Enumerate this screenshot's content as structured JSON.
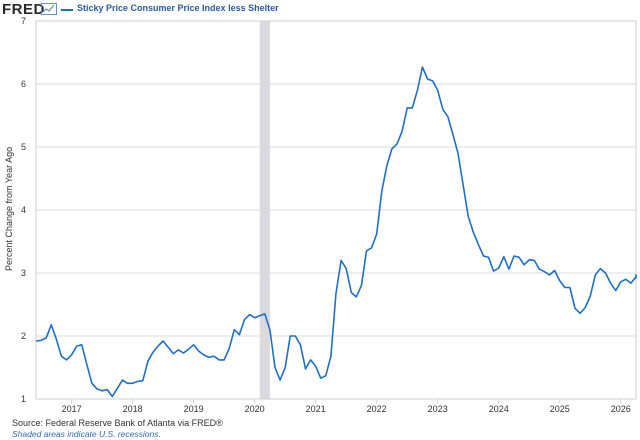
{
  "header": {
    "logo_text": "FRED",
    "logo_icon": "fred-graph-icon",
    "legend_label": "Sticky Price Consumer Price Index less Shelter"
  },
  "footer": {
    "source": "Source: Federal Reserve Bank of Atlanta via FRED®",
    "recession_note": "Shaded areas indicate U.S. recessions."
  },
  "colors": {
    "line": "#1f6fc9",
    "grid": "#dcdcdc",
    "recession": "#d9d9de"
  },
  "chart_data": {
    "type": "line",
    "title": "",
    "xlabel": "",
    "ylabel": "Percent Change from Year Ago",
    "xlim": [
      "2016-06",
      "2026-04"
    ],
    "ylim": [
      1,
      7
    ],
    "yticks": [
      1,
      2,
      3,
      4,
      5,
      6,
      7
    ],
    "xticks": [
      "2017",
      "2018",
      "2019",
      "2020",
      "2021",
      "2022",
      "2023",
      "2024",
      "2025",
      "2026"
    ],
    "grid": true,
    "legend": "top-left",
    "recessions": [
      {
        "start": "2020-02",
        "end": "2020-04"
      }
    ],
    "series": [
      {
        "name": "Sticky Price Consumer Price Index less Shelter",
        "points": [
          [
            "2016-06",
            1.92
          ],
          [
            "2016-07",
            1.93
          ],
          [
            "2016-08",
            1.97
          ],
          [
            "2016-09",
            2.18
          ],
          [
            "2016-10",
            1.95
          ],
          [
            "2016-11",
            1.68
          ],
          [
            "2016-12",
            1.62
          ],
          [
            "2017-01",
            1.7
          ],
          [
            "2017-02",
            1.84
          ],
          [
            "2017-03",
            1.86
          ],
          [
            "2017-04",
            1.55
          ],
          [
            "2017-05",
            1.25
          ],
          [
            "2017-06",
            1.16
          ],
          [
            "2017-07",
            1.13
          ],
          [
            "2017-08",
            1.15
          ],
          [
            "2017-09",
            1.04
          ],
          [
            "2017-10",
            1.17
          ],
          [
            "2017-11",
            1.3
          ],
          [
            "2017-12",
            1.25
          ],
          [
            "2018-01",
            1.25
          ],
          [
            "2018-02",
            1.28
          ],
          [
            "2018-03",
            1.29
          ],
          [
            "2018-04",
            1.6
          ],
          [
            "2018-05",
            1.74
          ],
          [
            "2018-06",
            1.84
          ],
          [
            "2018-07",
            1.92
          ],
          [
            "2018-08",
            1.82
          ],
          [
            "2018-09",
            1.72
          ],
          [
            "2018-10",
            1.78
          ],
          [
            "2018-11",
            1.73
          ],
          [
            "2018-12",
            1.79
          ],
          [
            "2019-01",
            1.86
          ],
          [
            "2019-02",
            1.76
          ],
          [
            "2019-03",
            1.7
          ],
          [
            "2019-04",
            1.66
          ],
          [
            "2019-05",
            1.68
          ],
          [
            "2019-06",
            1.62
          ],
          [
            "2019-07",
            1.62
          ],
          [
            "2019-08",
            1.8
          ],
          [
            "2019-09",
            2.1
          ],
          [
            "2019-10",
            2.02
          ],
          [
            "2019-11",
            2.26
          ],
          [
            "2019-12",
            2.34
          ],
          [
            "2020-01",
            2.29
          ],
          [
            "2020-02",
            2.32
          ],
          [
            "2020-03",
            2.35
          ],
          [
            "2020-04",
            2.1
          ],
          [
            "2020-05",
            1.5
          ],
          [
            "2020-06",
            1.3
          ],
          [
            "2020-07",
            1.5
          ],
          [
            "2020-08",
            2.0
          ],
          [
            "2020-09",
            2.0
          ],
          [
            "2020-10",
            1.86
          ],
          [
            "2020-11",
            1.48
          ],
          [
            "2020-12",
            1.62
          ],
          [
            "2021-01",
            1.52
          ],
          [
            "2021-02",
            1.33
          ],
          [
            "2021-03",
            1.37
          ],
          [
            "2021-04",
            1.68
          ],
          [
            "2021-05",
            2.68
          ],
          [
            "2021-06",
            3.2
          ],
          [
            "2021-07",
            3.07
          ],
          [
            "2021-08",
            2.69
          ],
          [
            "2021-09",
            2.62
          ],
          [
            "2021-10",
            2.8
          ],
          [
            "2021-11",
            3.35
          ],
          [
            "2021-12",
            3.4
          ],
          [
            "2022-01",
            3.62
          ],
          [
            "2022-02",
            4.3
          ],
          [
            "2022-03",
            4.7
          ],
          [
            "2022-04",
            4.97
          ],
          [
            "2022-05",
            5.05
          ],
          [
            "2022-06",
            5.25
          ],
          [
            "2022-07",
            5.62
          ],
          [
            "2022-08",
            5.62
          ],
          [
            "2022-09",
            5.9
          ],
          [
            "2022-10",
            6.27
          ],
          [
            "2022-11",
            6.08
          ],
          [
            "2022-12",
            6.05
          ],
          [
            "2023-01",
            5.9
          ],
          [
            "2023-02",
            5.6
          ],
          [
            "2023-03",
            5.48
          ],
          [
            "2023-04",
            5.2
          ],
          [
            "2023-05",
            4.9
          ],
          [
            "2023-06",
            4.4
          ],
          [
            "2023-07",
            3.9
          ],
          [
            "2023-08",
            3.65
          ],
          [
            "2023-09",
            3.45
          ],
          [
            "2023-10",
            3.27
          ],
          [
            "2023-11",
            3.25
          ],
          [
            "2023-12",
            3.03
          ],
          [
            "2024-01",
            3.08
          ],
          [
            "2024-02",
            3.26
          ],
          [
            "2024-03",
            3.06
          ],
          [
            "2024-04",
            3.27
          ],
          [
            "2024-05",
            3.25
          ],
          [
            "2024-06",
            3.13
          ],
          [
            "2024-07",
            3.21
          ],
          [
            "2024-08",
            3.2
          ],
          [
            "2024-09",
            3.06
          ],
          [
            "2024-10",
            3.02
          ],
          [
            "2024-11",
            2.97
          ],
          [
            "2024-12",
            3.04
          ],
          [
            "2025-01",
            2.88
          ],
          [
            "2025-02",
            2.77
          ],
          [
            "2025-03",
            2.77
          ],
          [
            "2025-04",
            2.44
          ],
          [
            "2025-05",
            2.36
          ],
          [
            "2025-06",
            2.45
          ],
          [
            "2025-07",
            2.63
          ],
          [
            "2025-08",
            2.97
          ],
          [
            "2025-09",
            3.07
          ],
          [
            "2025-10",
            3.0
          ],
          [
            "2025-11",
            2.84
          ],
          [
            "2025-12",
            2.72
          ],
          [
            "2026-01",
            2.86
          ],
          [
            "2026-02",
            2.9
          ],
          [
            "2026-03",
            2.84
          ],
          [
            "2026-04",
            2.94
          ],
          [
            "2026-05",
            2.92
          ],
          [
            "2026-06",
            2.98
          ]
        ]
      }
    ]
  }
}
